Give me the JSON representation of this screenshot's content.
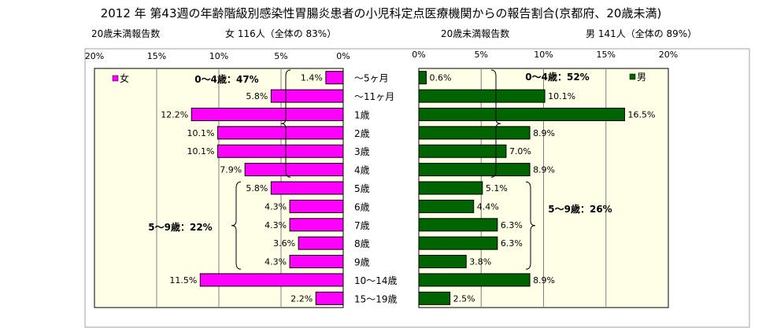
{
  "title": "2012 年 第43週の年齢階級別感染性胃腸炎患者の小児科定点医療機関からの報告割合(京都府、20歳未満)",
  "female_header": {
    "label": "20歳未満報告数",
    "summary": "女 116人（全体の 83%）"
  },
  "male_header": {
    "label": "20歳未満報告数",
    "summary": "男 141人（全体の 89%）"
  },
  "colors": {
    "female": "#ff00ff",
    "male": "#006400",
    "plot_bg": "#ffffe8",
    "bar_edge": "#000000"
  },
  "chart_data": [
    {
      "type": "bar",
      "orientation": "horizontal",
      "direction": "right-to-left",
      "legend": "女",
      "legend_placement": "top-left",
      "xlim": [
        0,
        20
      ],
      "xticks": [
        "0%",
        "5%",
        "10%",
        "15%",
        "20%"
      ],
      "xtick_values": [
        0,
        5,
        10,
        15,
        20
      ],
      "grid": true,
      "categories": [
        "～5ヶ月",
        "～11ヶ月",
        "1歳",
        "2歳",
        "3歳",
        "4歳",
        "5歳",
        "6歳",
        "7歳",
        "8歳",
        "9歳",
        "10～14歳",
        "15～19歳"
      ],
      "values": [
        1.4,
        5.8,
        12.2,
        10.1,
        10.1,
        7.9,
        5.8,
        4.3,
        4.3,
        3.6,
        4.3,
        11.5,
        2.2
      ],
      "value_labels": [
        "1.4%",
        "5.8%",
        "12.2%",
        "10.1%",
        "10.1%",
        "7.9%",
        "5.8%",
        "4.3%",
        "4.3%",
        "3.6%",
        "4.3%",
        "11.5%",
        "2.2%"
      ],
      "annotations": [
        {
          "text": "0～4歳：47%",
          "from": 0,
          "to": 5
        },
        {
          "text": "5～9歳：22%",
          "from": 6,
          "to": 10
        }
      ]
    },
    {
      "type": "bar",
      "orientation": "horizontal",
      "direction": "left-to-right",
      "legend": "男",
      "legend_placement": "top-right",
      "xlim": [
        0,
        20
      ],
      "xticks": [
        "0%",
        "5%",
        "10%",
        "15%",
        "20%"
      ],
      "xtick_values": [
        0,
        5,
        10,
        15,
        20
      ],
      "grid": true,
      "categories": [
        "～5ヶ月",
        "～11ヶ月",
        "1歳",
        "2歳",
        "3歳",
        "4歳",
        "5歳",
        "6歳",
        "7歳",
        "8歳",
        "9歳",
        "10～14歳",
        "15～19歳"
      ],
      "values": [
        0.6,
        10.1,
        16.5,
        8.9,
        7.0,
        8.9,
        5.1,
        4.4,
        6.3,
        6.3,
        3.8,
        8.9,
        2.5
      ],
      "value_labels": [
        "0.6%",
        "10.1%",
        "16.5%",
        "8.9%",
        "7.0%",
        "8.9%",
        "5.1%",
        "4.4%",
        "6.3%",
        "6.3%",
        "3.8%",
        "8.9%",
        "2.5%"
      ],
      "annotations": [
        {
          "text": "0～4歳：52%",
          "from": 0,
          "to": 5
        },
        {
          "text": "5～9歳：26%",
          "from": 6,
          "to": 10
        }
      ]
    }
  ]
}
